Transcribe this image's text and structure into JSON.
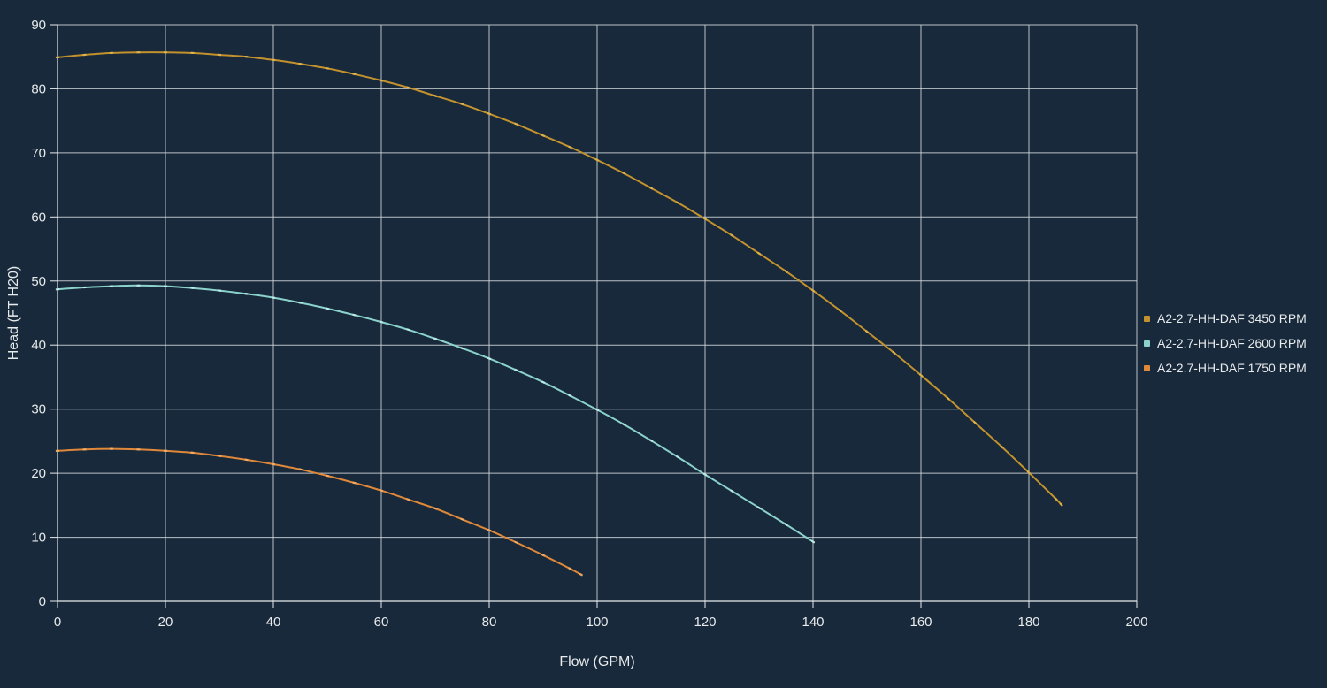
{
  "chart_data": {
    "type": "line",
    "title": "",
    "xlabel": "Flow (GPM)",
    "ylabel": "Head (FT H20)",
    "xlim": [
      0,
      200
    ],
    "ylim": [
      0,
      90
    ],
    "x_ticks": [
      0,
      20,
      40,
      60,
      80,
      100,
      120,
      140,
      160,
      180,
      200
    ],
    "y_ticks": [
      0,
      10,
      20,
      30,
      40,
      50,
      60,
      70,
      80,
      90
    ],
    "grid": true,
    "legend_position": "right",
    "colors": {
      "background": "#17293a",
      "grid": "#d8dce0",
      "axis": "#e8ebee",
      "text": "#e8eaec"
    },
    "series": [
      {
        "name": "A2-2.7-HH-DAF 3450 RPM",
        "color": "#c3922e",
        "marker_color": "#dfb24a",
        "x": [
          0,
          5,
          10,
          15,
          20,
          25,
          30,
          35,
          40,
          45,
          50,
          55,
          60,
          65,
          70,
          75,
          80,
          85,
          90,
          95,
          100,
          105,
          110,
          115,
          120,
          125,
          130,
          135,
          140,
          145,
          150,
          155,
          160,
          165,
          170,
          175,
          180,
          185,
          186
        ],
        "y": [
          84.9,
          85.3,
          85.6,
          85.7,
          85.7,
          85.6,
          85.3,
          85.0,
          84.5,
          83.9,
          83.2,
          82.3,
          81.3,
          80.2,
          78.9,
          77.6,
          76.1,
          74.5,
          72.7,
          70.9,
          68.9,
          66.8,
          64.5,
          62.2,
          59.7,
          57.1,
          54.3,
          51.5,
          48.5,
          45.4,
          42.1,
          38.8,
          35.3,
          31.7,
          27.9,
          24.1,
          20.1,
          16.0,
          15.1
        ]
      },
      {
        "name": "A2-2.7-HH-DAF 2600 RPM",
        "color": "#8bd2cd",
        "marker_color": "#c0ebe7",
        "x": [
          0,
          5,
          10,
          15,
          20,
          25,
          30,
          35,
          40,
          45,
          50,
          55,
          60,
          65,
          70,
          75,
          80,
          85,
          90,
          95,
          100,
          105,
          110,
          115,
          120,
          125,
          130,
          135,
          140
        ],
        "y": [
          48.7,
          49.0,
          49.2,
          49.3,
          49.2,
          48.9,
          48.5,
          48.0,
          47.4,
          46.6,
          45.7,
          44.7,
          43.6,
          42.4,
          41.0,
          39.5,
          37.9,
          36.1,
          34.2,
          32.1,
          29.9,
          27.6,
          25.1,
          22.5,
          19.8,
          17.2,
          14.6,
          12.0,
          9.3
        ]
      },
      {
        "name": "A2-2.7-HH-DAF 1750 RPM",
        "color": "#e0883a",
        "marker_color": "#f5ab61",
        "x": [
          0,
          5,
          10,
          15,
          20,
          25,
          30,
          35,
          40,
          45,
          50,
          55,
          60,
          65,
          70,
          75,
          80,
          85,
          90,
          95,
          97
        ],
        "y": [
          23.5,
          23.7,
          23.8,
          23.7,
          23.5,
          23.2,
          22.7,
          22.1,
          21.4,
          20.6,
          19.6,
          18.5,
          17.3,
          15.9,
          14.5,
          12.8,
          11.1,
          9.2,
          7.2,
          5.1,
          4.2
        ]
      }
    ]
  }
}
